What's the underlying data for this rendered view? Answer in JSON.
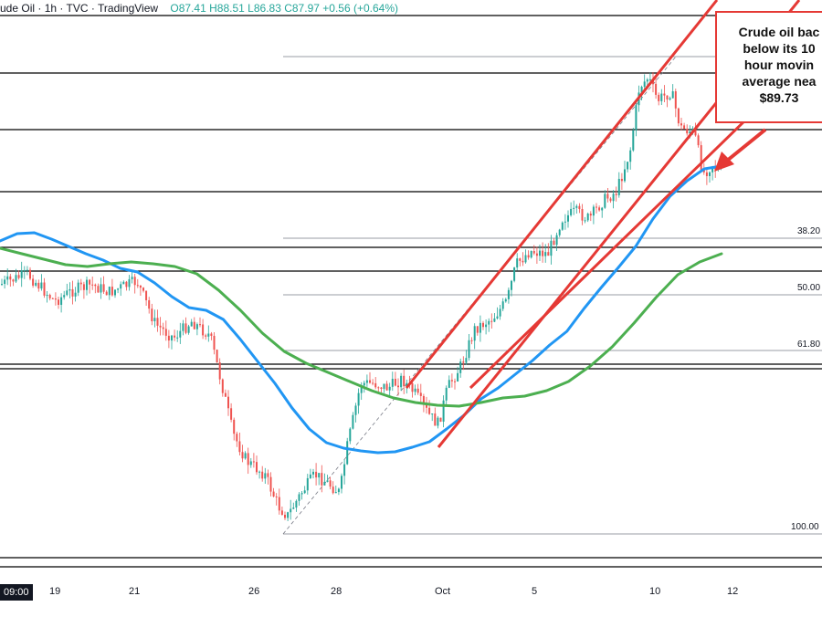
{
  "header": {
    "symbol": "ude Oil",
    "interval": "1h",
    "source": "TVC",
    "platform": "TradingView",
    "ohlc": {
      "open": "O87.41",
      "high": "H88.51",
      "low": "L86.83",
      "close": "C87.97",
      "change": "+0.56 (+0.64%)"
    }
  },
  "callout": {
    "lines": [
      "Crude oil bac",
      "below its 10",
      "hour movin",
      "average nea",
      "$89.73"
    ],
    "border_color": "#e53935"
  },
  "time_badge": "09:00",
  "chart_data": {
    "type": "line",
    "x_axis_ticks": [
      "19",
      "21",
      "26",
      "28",
      "Oct",
      "5",
      "10",
      "12"
    ],
    "fib_levels": [
      "38.20",
      "50.00",
      "61.80",
      "100.00"
    ],
    "series": [
      {
        "name": "",
        "color": "#2196f3",
        "values": [
          264,
          256,
          255,
          262,
          270,
          278,
          285,
          294,
          298,
          310,
          325,
          337,
          340,
          350,
          372,
          396,
          420,
          447,
          470,
          485,
          491,
          494,
          496,
          495,
          490,
          484,
          470,
          455,
          437,
          425,
          410,
          395,
          378,
          363,
          338,
          315,
          293,
          270,
          240,
          215,
          198,
          185,
          182
        ]
      },
      {
        "name": "",
        "color": "#4caf50",
        "values": [
          272,
          278,
          284,
          290,
          292,
          289,
          287,
          289,
          292,
          300,
          318,
          340,
          365,
          385,
          398,
          408,
          418,
          428,
          436,
          441,
          444,
          445,
          441,
          436,
          434,
          428,
          418,
          401,
          380,
          354,
          326,
          301,
          287,
          278
        ]
      }
    ],
    "grid": false,
    "colors": {
      "bull": "#26a69a",
      "bear": "#ef5350",
      "channel": "#e53935"
    }
  }
}
